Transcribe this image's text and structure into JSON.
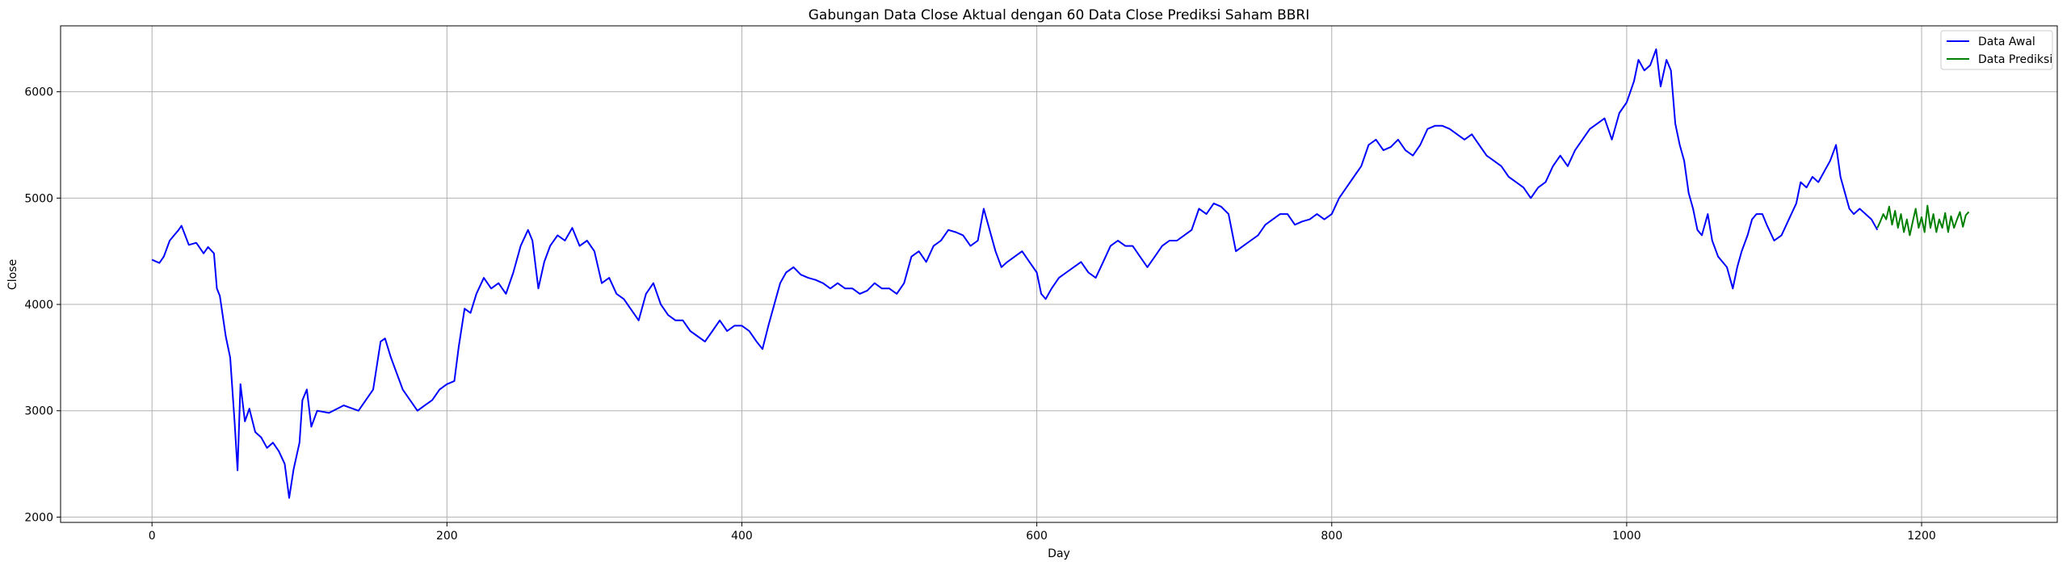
{
  "chart_data": {
    "type": "line",
    "title": "Gabungan Data Close Aktual dengan 60 Data Close Prediksi Saham BBRI",
    "xlabel": "Day",
    "ylabel": "Close",
    "xlim": [
      -62,
      1292
    ],
    "ylim": [
      1950,
      6620
    ],
    "x_ticks": [
      0,
      200,
      400,
      600,
      800,
      1000,
      1200
    ],
    "y_ticks": [
      2000,
      3000,
      4000,
      5000,
      6000
    ],
    "grid": true,
    "legend_position": "top-right",
    "series": [
      {
        "name": "Data Awal",
        "color": "#0000ff",
        "points": [
          [
            0,
            4420
          ],
          [
            5,
            4390
          ],
          [
            8,
            4450
          ],
          [
            12,
            4600
          ],
          [
            15,
            4650
          ],
          [
            18,
            4700
          ],
          [
            20,
            4740
          ],
          [
            25,
            4560
          ],
          [
            30,
            4580
          ],
          [
            35,
            4480
          ],
          [
            38,
            4540
          ],
          [
            42,
            4480
          ],
          [
            44,
            4150
          ],
          [
            46,
            4080
          ],
          [
            50,
            3700
          ],
          [
            53,
            3500
          ],
          [
            56,
            2900
          ],
          [
            58,
            2440
          ],
          [
            60,
            3250
          ],
          [
            63,
            2900
          ],
          [
            66,
            3020
          ],
          [
            70,
            2800
          ],
          [
            74,
            2750
          ],
          [
            78,
            2650
          ],
          [
            82,
            2700
          ],
          [
            86,
            2620
          ],
          [
            90,
            2500
          ],
          [
            93,
            2180
          ],
          [
            96,
            2450
          ],
          [
            100,
            2700
          ],
          [
            102,
            3100
          ],
          [
            105,
            3200
          ],
          [
            108,
            2850
          ],
          [
            112,
            3000
          ],
          [
            120,
            2980
          ],
          [
            130,
            3050
          ],
          [
            140,
            3000
          ],
          [
            145,
            3100
          ],
          [
            150,
            3200
          ],
          [
            155,
            3650
          ],
          [
            158,
            3680
          ],
          [
            162,
            3500
          ],
          [
            166,
            3350
          ],
          [
            170,
            3200
          ],
          [
            175,
            3100
          ],
          [
            180,
            3000
          ],
          [
            185,
            3050
          ],
          [
            190,
            3100
          ],
          [
            195,
            3200
          ],
          [
            200,
            3250
          ],
          [
            205,
            3280
          ],
          [
            208,
            3600
          ],
          [
            212,
            3960
          ],
          [
            216,
            3920
          ],
          [
            220,
            4100
          ],
          [
            225,
            4250
          ],
          [
            230,
            4150
          ],
          [
            235,
            4200
          ],
          [
            240,
            4100
          ],
          [
            245,
            4300
          ],
          [
            250,
            4550
          ],
          [
            255,
            4700
          ],
          [
            258,
            4600
          ],
          [
            262,
            4150
          ],
          [
            266,
            4400
          ],
          [
            270,
            4550
          ],
          [
            275,
            4650
          ],
          [
            280,
            4600
          ],
          [
            285,
            4720
          ],
          [
            290,
            4550
          ],
          [
            295,
            4600
          ],
          [
            300,
            4500
          ],
          [
            305,
            4200
          ],
          [
            310,
            4250
          ],
          [
            315,
            4100
          ],
          [
            320,
            4050
          ],
          [
            325,
            3950
          ],
          [
            330,
            3850
          ],
          [
            335,
            4100
          ],
          [
            340,
            4200
          ],
          [
            345,
            4000
          ],
          [
            350,
            3900
          ],
          [
            355,
            3850
          ],
          [
            360,
            3850
          ],
          [
            365,
            3750
          ],
          [
            370,
            3700
          ],
          [
            375,
            3650
          ],
          [
            380,
            3750
          ],
          [
            385,
            3850
          ],
          [
            390,
            3750
          ],
          [
            395,
            3800
          ],
          [
            400,
            3800
          ],
          [
            405,
            3750
          ],
          [
            410,
            3650
          ],
          [
            414,
            3580
          ],
          [
            418,
            3800
          ],
          [
            422,
            4000
          ],
          [
            426,
            4200
          ],
          [
            430,
            4300
          ],
          [
            435,
            4350
          ],
          [
            440,
            4280
          ],
          [
            445,
            4250
          ],
          [
            450,
            4230
          ],
          [
            455,
            4200
          ],
          [
            460,
            4150
          ],
          [
            465,
            4200
          ],
          [
            470,
            4150
          ],
          [
            475,
            4150
          ],
          [
            480,
            4100
          ],
          [
            485,
            4130
          ],
          [
            490,
            4200
          ],
          [
            495,
            4150
          ],
          [
            500,
            4150
          ],
          [
            505,
            4100
          ],
          [
            510,
            4200
          ],
          [
            515,
            4450
          ],
          [
            520,
            4500
          ],
          [
            525,
            4400
          ],
          [
            530,
            4550
          ],
          [
            535,
            4600
          ],
          [
            540,
            4700
          ],
          [
            545,
            4680
          ],
          [
            550,
            4650
          ],
          [
            555,
            4550
          ],
          [
            560,
            4600
          ],
          [
            564,
            4900
          ],
          [
            568,
            4700
          ],
          [
            572,
            4500
          ],
          [
            576,
            4350
          ],
          [
            580,
            4400
          ],
          [
            585,
            4450
          ],
          [
            590,
            4500
          ],
          [
            595,
            4400
          ],
          [
            600,
            4300
          ],
          [
            603,
            4100
          ],
          [
            606,
            4050
          ],
          [
            610,
            4150
          ],
          [
            615,
            4250
          ],
          [
            620,
            4300
          ],
          [
            625,
            4350
          ],
          [
            630,
            4400
          ],
          [
            635,
            4300
          ],
          [
            640,
            4250
          ],
          [
            645,
            4400
          ],
          [
            650,
            4550
          ],
          [
            655,
            4600
          ],
          [
            660,
            4550
          ],
          [
            665,
            4550
          ],
          [
            670,
            4450
          ],
          [
            675,
            4350
          ],
          [
            680,
            4450
          ],
          [
            685,
            4550
          ],
          [
            690,
            4600
          ],
          [
            695,
            4600
          ],
          [
            700,
            4650
          ],
          [
            705,
            4700
          ],
          [
            710,
            4900
          ],
          [
            715,
            4850
          ],
          [
            720,
            4950
          ],
          [
            725,
            4920
          ],
          [
            730,
            4850
          ],
          [
            735,
            4500
          ],
          [
            740,
            4550
          ],
          [
            745,
            4600
          ],
          [
            750,
            4650
          ],
          [
            755,
            4750
          ],
          [
            760,
            4800
          ],
          [
            765,
            4850
          ],
          [
            770,
            4850
          ],
          [
            775,
            4750
          ],
          [
            780,
            4780
          ],
          [
            785,
            4800
          ],
          [
            790,
            4850
          ],
          [
            795,
            4800
          ],
          [
            800,
            4850
          ],
          [
            805,
            5000
          ],
          [
            810,
            5100
          ],
          [
            815,
            5200
          ],
          [
            820,
            5300
          ],
          [
            825,
            5500
          ],
          [
            830,
            5550
          ],
          [
            835,
            5450
          ],
          [
            840,
            5480
          ],
          [
            845,
            5550
          ],
          [
            850,
            5450
          ],
          [
            855,
            5400
          ],
          [
            860,
            5500
          ],
          [
            865,
            5650
          ],
          [
            870,
            5680
          ],
          [
            875,
            5680
          ],
          [
            880,
            5650
          ],
          [
            885,
            5600
          ],
          [
            890,
            5550
          ],
          [
            895,
            5600
          ],
          [
            900,
            5500
          ],
          [
            905,
            5400
          ],
          [
            910,
            5350
          ],
          [
            915,
            5300
          ],
          [
            920,
            5200
          ],
          [
            925,
            5150
          ],
          [
            930,
            5100
          ],
          [
            935,
            5000
          ],
          [
            940,
            5100
          ],
          [
            945,
            5150
          ],
          [
            950,
            5300
          ],
          [
            955,
            5400
          ],
          [
            960,
            5300
          ],
          [
            965,
            5450
          ],
          [
            970,
            5550
          ],
          [
            975,
            5650
          ],
          [
            980,
            5700
          ],
          [
            985,
            5750
          ],
          [
            990,
            5550
          ],
          [
            995,
            5800
          ],
          [
            1000,
            5900
          ],
          [
            1005,
            6100
          ],
          [
            1008,
            6300
          ],
          [
            1012,
            6200
          ],
          [
            1016,
            6250
          ],
          [
            1020,
            6400
          ],
          [
            1023,
            6050
          ],
          [
            1027,
            6300
          ],
          [
            1030,
            6200
          ],
          [
            1033,
            5700
          ],
          [
            1036,
            5500
          ],
          [
            1039,
            5350
          ],
          [
            1042,
            5050
          ],
          [
            1045,
            4900
          ],
          [
            1048,
            4700
          ],
          [
            1051,
            4650
          ],
          [
            1055,
            4850
          ],
          [
            1058,
            4600
          ],
          [
            1062,
            4450
          ],
          [
            1065,
            4400
          ],
          [
            1068,
            4350
          ],
          [
            1072,
            4150
          ],
          [
            1075,
            4350
          ],
          [
            1078,
            4500
          ],
          [
            1082,
            4650
          ],
          [
            1085,
            4800
          ],
          [
            1088,
            4850
          ],
          [
            1092,
            4850
          ],
          [
            1095,
            4750
          ],
          [
            1100,
            4600
          ],
          [
            1105,
            4650
          ],
          [
            1110,
            4800
          ],
          [
            1115,
            4950
          ],
          [
            1118,
            5150
          ],
          [
            1122,
            5100
          ],
          [
            1126,
            5200
          ],
          [
            1130,
            5150
          ],
          [
            1134,
            5250
          ],
          [
            1138,
            5350
          ],
          [
            1142,
            5500
          ],
          [
            1145,
            5200
          ],
          [
            1148,
            5050
          ],
          [
            1151,
            4900
          ],
          [
            1154,
            4850
          ],
          [
            1158,
            4900
          ],
          [
            1162,
            4850
          ],
          [
            1166,
            4800
          ],
          [
            1170,
            4700
          ]
        ]
      },
      {
        "name": "Data Prediksi",
        "color": "#008000",
        "points": [
          [
            1170,
            4720
          ],
          [
            1172,
            4780
          ],
          [
            1174,
            4850
          ],
          [
            1176,
            4800
          ],
          [
            1178,
            4920
          ],
          [
            1180,
            4750
          ],
          [
            1182,
            4880
          ],
          [
            1184,
            4720
          ],
          [
            1186,
            4850
          ],
          [
            1188,
            4680
          ],
          [
            1190,
            4800
          ],
          [
            1192,
            4650
          ],
          [
            1194,
            4780
          ],
          [
            1196,
            4900
          ],
          [
            1198,
            4720
          ],
          [
            1200,
            4820
          ],
          [
            1202,
            4680
          ],
          [
            1204,
            4930
          ],
          [
            1206,
            4720
          ],
          [
            1208,
            4850
          ],
          [
            1210,
            4680
          ],
          [
            1212,
            4800
          ],
          [
            1214,
            4720
          ],
          [
            1216,
            4860
          ],
          [
            1218,
            4680
          ],
          [
            1220,
            4830
          ],
          [
            1222,
            4720
          ],
          [
            1224,
            4800
          ],
          [
            1226,
            4870
          ],
          [
            1228,
            4730
          ],
          [
            1230,
            4840
          ],
          [
            1232,
            4870
          ]
        ]
      }
    ]
  }
}
